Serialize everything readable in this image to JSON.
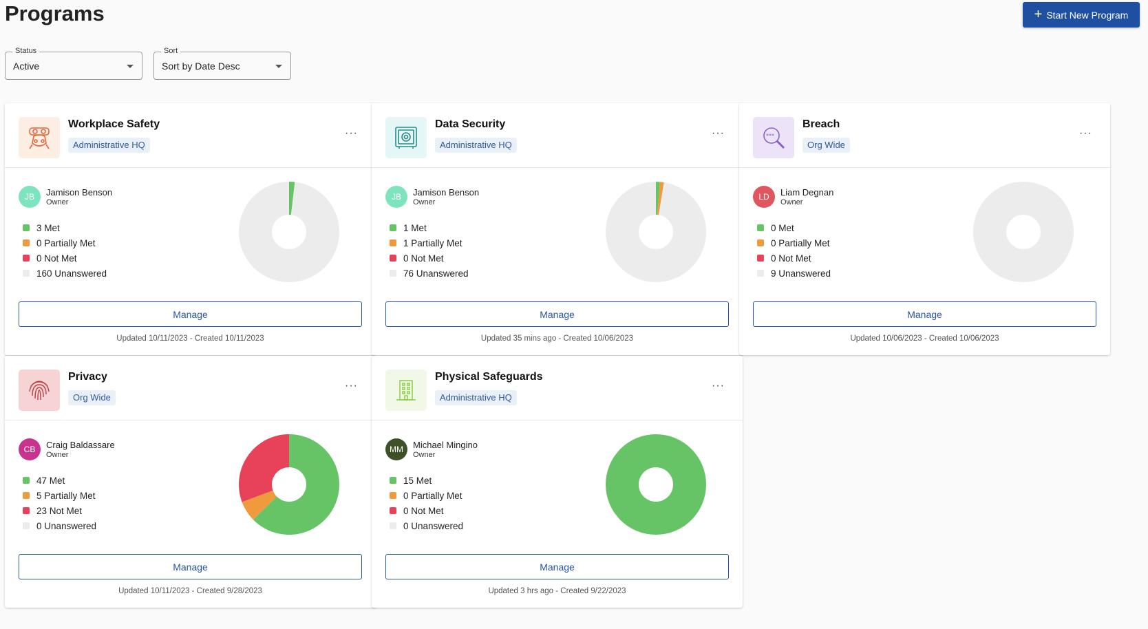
{
  "page": {
    "title": "Programs"
  },
  "actions": {
    "start_new_label": "Start New Program"
  },
  "filters": {
    "status": {
      "label": "Status",
      "value": "Active"
    },
    "sort": {
      "label": "Sort",
      "value": "Sort by Date Desc"
    }
  },
  "colors": {
    "met": "#66c467",
    "partially_met": "#f09a3e",
    "not_met": "#e8425a",
    "unanswered": "#ececec",
    "primary": "#1e4fa0"
  },
  "programs": [
    {
      "title": "Workplace Safety",
      "tag": "Administrative HQ",
      "icon": "safety-gear-icon",
      "owner": {
        "initials": "JB",
        "name": "Jamison Benson",
        "role": "Owner",
        "color": "#7ee3bf"
      },
      "counts": {
        "met": 3,
        "partially_met": 0,
        "not_met": 0,
        "unanswered": 160
      },
      "legend": [
        "3 Met",
        "0 Partially Met",
        "0 Not Met",
        "160 Unanswered"
      ],
      "manage_label": "Manage",
      "meta": "Updated 10/11/2023 - Created 10/11/2023"
    },
    {
      "title": "Data Security",
      "tag": "Administrative HQ",
      "icon": "safe-vault-icon",
      "owner": {
        "initials": "JB",
        "name": "Jamison Benson",
        "role": "Owner",
        "color": "#7ee3bf"
      },
      "counts": {
        "met": 1,
        "partially_met": 1,
        "not_met": 0,
        "unanswered": 76
      },
      "legend": [
        "1 Met",
        "1 Partially Met",
        "0 Not Met",
        "76 Unanswered"
      ],
      "manage_label": "Manage",
      "meta": "Updated 35 mins ago - Created 10/06/2023"
    },
    {
      "title": "Breach",
      "tag": "Org Wide",
      "icon": "password-search-icon",
      "owner": {
        "initials": "LD",
        "name": "Liam Degnan",
        "role": "Owner",
        "color": "#e0565e"
      },
      "counts": {
        "met": 0,
        "partially_met": 0,
        "not_met": 0,
        "unanswered": 9
      },
      "legend": [
        "0 Met",
        "0 Partially Met",
        "0 Not Met",
        "9 Unanswered"
      ],
      "manage_label": "Manage",
      "meta": "Updated 10/06/2023 - Created 10/06/2023"
    },
    {
      "title": "Privacy",
      "tag": "Org Wide",
      "icon": "fingerprint-icon",
      "owner": {
        "initials": "CB",
        "name": "Craig Baldassare",
        "role": "Owner",
        "color": "#c9338f"
      },
      "counts": {
        "met": 47,
        "partially_met": 5,
        "not_met": 23,
        "unanswered": 0
      },
      "legend": [
        "47 Met",
        "5 Partially Met",
        "23 Not Met",
        "0 Unanswered"
      ],
      "manage_label": "Manage",
      "meta": "Updated 10/11/2023 - Created 9/28/2023"
    },
    {
      "title": "Physical Safeguards",
      "tag": "Administrative HQ",
      "icon": "building-icon",
      "owner": {
        "initials": "MM",
        "name": "Michael Mingino",
        "role": "Owner",
        "color": "#3f5127"
      },
      "counts": {
        "met": 15,
        "partially_met": 0,
        "not_met": 0,
        "unanswered": 0
      },
      "legend": [
        "15 Met",
        "0 Partially Met",
        "0 Not Met",
        "0 Unanswered"
      ],
      "manage_label": "Manage",
      "meta": "Updated 3 hrs ago - Created 9/22/2023"
    }
  ]
}
